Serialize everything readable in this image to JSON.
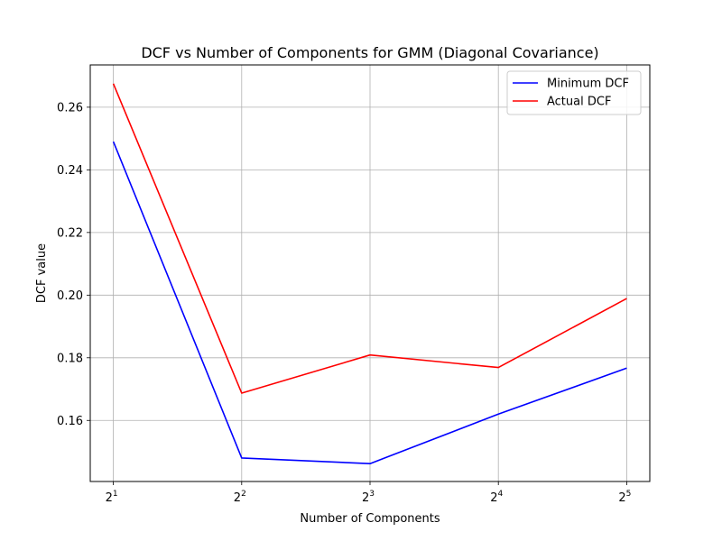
{
  "chart_data": {
    "type": "line",
    "title": "DCF vs Number of Components for GMM (Diagonal Covariance)",
    "xlabel": "Number of Components",
    "ylabel": "DCF value",
    "x": [
      2,
      4,
      8,
      16,
      32
    ],
    "xscale": "log2",
    "x_tick_labels": [
      {
        "base": "2",
        "exp": "1"
      },
      {
        "base": "2",
        "exp": "2"
      },
      {
        "base": "2",
        "exp": "3"
      },
      {
        "base": "2",
        "exp": "4"
      },
      {
        "base": "2",
        "exp": "5"
      }
    ],
    "y_ticks": [
      0.16,
      0.18,
      0.2,
      0.22,
      0.24,
      0.26
    ],
    "y_tick_labels": [
      "0.16",
      "0.18",
      "0.20",
      "0.22",
      "0.24",
      "0.26"
    ],
    "ylim": [
      0.1405,
      0.2735
    ],
    "grid": true,
    "legend_position": "top-right",
    "series": [
      {
        "name": "Minimum DCF",
        "color": "#0000ff",
        "values": [
          0.249,
          0.148,
          0.1462,
          0.162,
          0.1767
        ]
      },
      {
        "name": "Actual DCF",
        "color": "#ff0000",
        "values": [
          0.2675,
          0.1687,
          0.1809,
          0.1769,
          0.1989
        ]
      }
    ]
  }
}
